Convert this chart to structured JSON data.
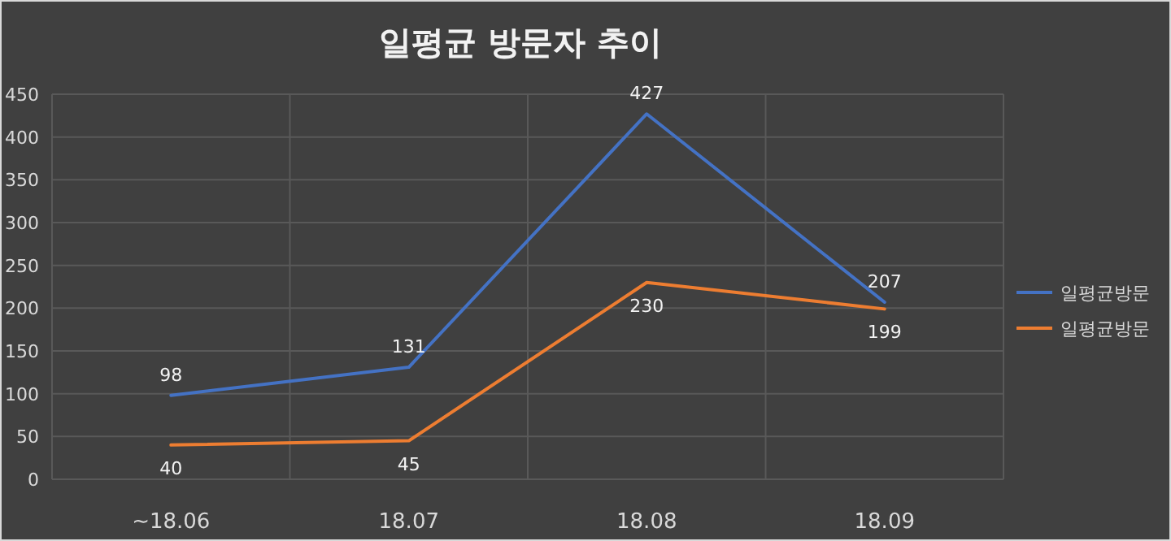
{
  "chart_data": {
    "type": "line",
    "title": "일평균 방문자 추이",
    "categories": [
      "~18.06",
      "18.07",
      "18.08",
      "18.09"
    ],
    "series": [
      {
        "name": "일평균방문",
        "color": "#4472c4",
        "values": [
          98,
          131,
          427,
          207
        ]
      },
      {
        "name": "일평균방문",
        "color": "#ed7d31",
        "values": [
          40,
          45,
          230,
          199
        ]
      }
    ],
    "ylim": [
      0,
      450
    ],
    "yticks": [
      0,
      50,
      100,
      150,
      200,
      250,
      300,
      350,
      400,
      450
    ],
    "grid": true,
    "legend": "right",
    "data_labels": true,
    "marker": "none",
    "line_style": "solid"
  }
}
